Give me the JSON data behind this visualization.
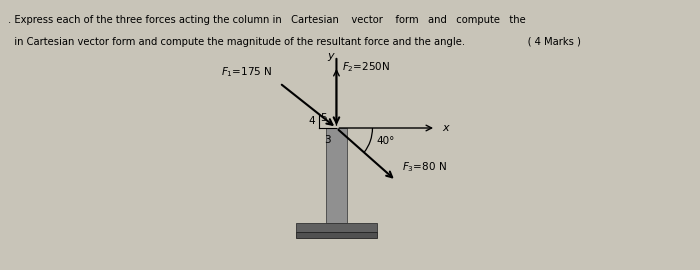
{
  "bg_color": "#c8c4b8",
  "text_line1": ". Express each of the three forces acting the column in   Cartesian    vector    form   and   compute   the",
  "text_line2": "  in Cartesian vector form and compute the magnitude of the resultant force and the angle.                    ( 4 Marks )",
  "f1_label": "$F_1$=175 N",
  "f2_label": "$F_2$=250N",
  "f3_label": "$F_3$=80 N",
  "num3": "3",
  "num4": "4",
  "num5": "5",
  "angle_label": "40°",
  "x_label": "x",
  "y_label": "y",
  "col_color": "#909090",
  "col_dark": "#606060",
  "base_color": "#505050"
}
